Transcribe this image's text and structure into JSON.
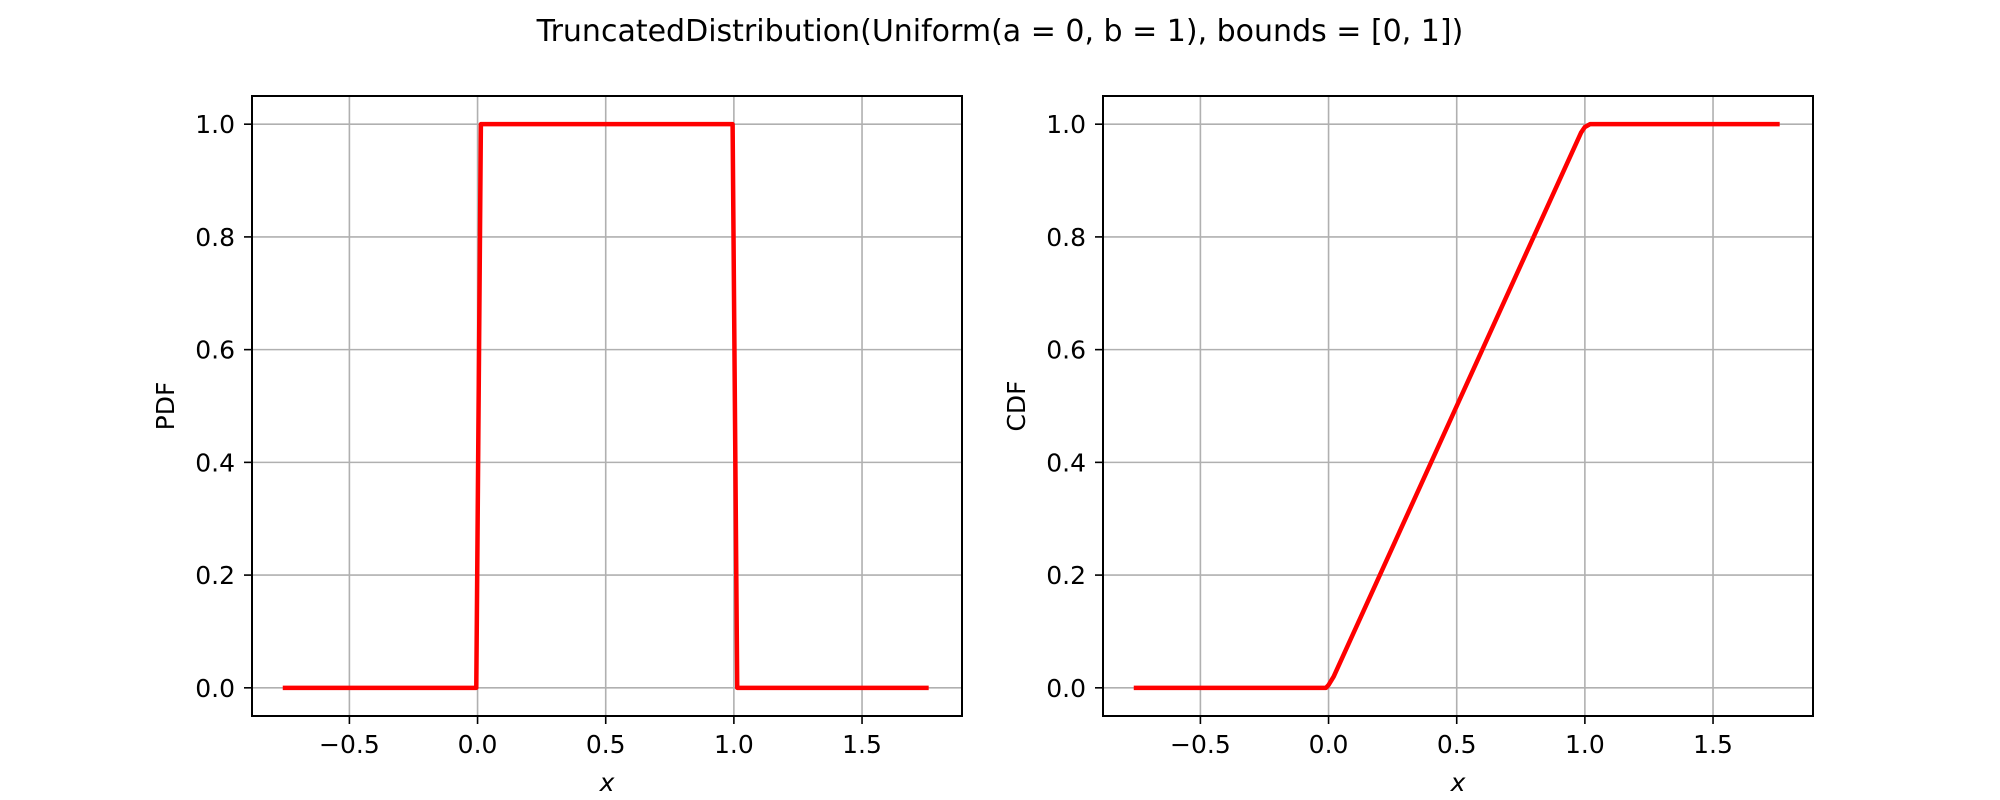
{
  "figure": {
    "title": "TruncatedDistribution(Uniform(a = 0, b = 1), bounds = [0, 1])"
  },
  "chart_data": [
    {
      "type": "line",
      "title": "",
      "xlabel": "x",
      "ylabel": "PDF",
      "xlim": [
        -0.88,
        1.89
      ],
      "ylim": [
        -0.05,
        1.05
      ],
      "xticks": [
        -0.5,
        0.0,
        0.5,
        1.0,
        1.5
      ],
      "xtick_labels": [
        "−0.5",
        "0.0",
        "0.5",
        "1.0",
        "1.5"
      ],
      "yticks": [
        0.0,
        0.2,
        0.4,
        0.6,
        0.8,
        1.0
      ],
      "ytick_labels": [
        "0.0",
        "0.2",
        "0.4",
        "0.6",
        "0.8",
        "1.0"
      ],
      "grid": true,
      "series": [
        {
          "color": "#ff0000",
          "x": [
            -0.76,
            -0.005,
            0.013,
            0.995,
            1.013,
            1.76
          ],
          "y": [
            0.0,
            0.0,
            1.0,
            1.0,
            0.0,
            0.0
          ]
        }
      ]
    },
    {
      "type": "line",
      "title": "",
      "xlabel": "x",
      "ylabel": "CDF",
      "xlim": [
        -0.88,
        1.89
      ],
      "ylim": [
        -0.05,
        1.05
      ],
      "xticks": [
        -0.5,
        0.0,
        0.5,
        1.0,
        1.5
      ],
      "xtick_labels": [
        "−0.5",
        "0.0",
        "0.5",
        "1.0",
        "1.5"
      ],
      "yticks": [
        0.0,
        0.2,
        0.4,
        0.6,
        0.8,
        1.0
      ],
      "ytick_labels": [
        "0.0",
        "0.2",
        "0.4",
        "0.6",
        "0.8",
        "1.0"
      ],
      "grid": true,
      "series": [
        {
          "color": "#ff0000",
          "x": [
            -0.76,
            -0.01,
            0.0,
            0.02,
            0.5,
            0.985,
            1.0,
            1.02,
            1.76
          ],
          "y": [
            0.0,
            0.0,
            0.005,
            0.02,
            0.5,
            0.985,
            0.995,
            1.0,
            1.0
          ]
        }
      ]
    }
  ]
}
